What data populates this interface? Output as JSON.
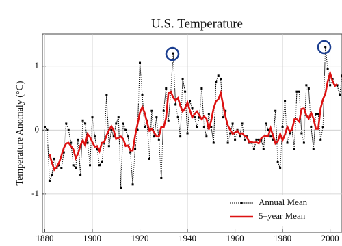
{
  "chart_data": {
    "type": "line",
    "title": "U.S. Temperature",
    "y_label": "Temperature Anomaly (°C)",
    "x": [
      1880,
      1881,
      1882,
      1883,
      1884,
      1885,
      1886,
      1887,
      1888,
      1889,
      1890,
      1891,
      1892,
      1893,
      1894,
      1895,
      1896,
      1897,
      1898,
      1899,
      1900,
      1901,
      1902,
      1903,
      1904,
      1905,
      1906,
      1907,
      1908,
      1909,
      1910,
      1911,
      1912,
      1913,
      1914,
      1915,
      1916,
      1917,
      1918,
      1919,
      1920,
      1921,
      1922,
      1923,
      1924,
      1925,
      1926,
      1927,
      1928,
      1929,
      1930,
      1931,
      1932,
      1933,
      1934,
      1935,
      1936,
      1937,
      1938,
      1939,
      1940,
      1941,
      1942,
      1943,
      1944,
      1945,
      1946,
      1947,
      1948,
      1949,
      1950,
      1951,
      1952,
      1953,
      1954,
      1955,
      1956,
      1957,
      1958,
      1959,
      1960,
      1961,
      1962,
      1963,
      1964,
      1965,
      1966,
      1967,
      1968,
      1969,
      1970,
      1971,
      1972,
      1973,
      1974,
      1975,
      1976,
      1977,
      1978,
      1979,
      1980,
      1981,
      1982,
      1983,
      1984,
      1985,
      1986,
      1987,
      1988,
      1989,
      1990,
      1991,
      1992,
      1993,
      1994,
      1995,
      1996,
      1997,
      1998,
      1999,
      2000,
      2001,
      2002,
      2003,
      2004,
      2005
    ],
    "series": [
      {
        "name": "Annual Mean",
        "color": "#000000",
        "style": "dotted",
        "marker": "square",
        "values": [
          0.05,
          0,
          -0.8,
          -0.7,
          -0.45,
          -0.6,
          -0.55,
          -0.6,
          -0.35,
          0.1,
          0,
          -0.2,
          -0.55,
          -0.6,
          -0.15,
          -0.7,
          0.15,
          0.1,
          -0.2,
          -0.55,
          0.2,
          -0.1,
          -0.3,
          -0.55,
          -0.5,
          -0.2,
          0.55,
          -0.25,
          0,
          -0.1,
          0.1,
          0.2,
          -0.9,
          0.1,
          0,
          -0.1,
          -0.35,
          -0.85,
          -0.3,
          0,
          1.05,
          0.55,
          0.05,
          0.15,
          -0.45,
          0.3,
          -0.1,
          0.2,
          -0.15,
          -0.75,
          0.3,
          0.65,
          0.15,
          0.6,
          1.2,
          0.4,
          0.2,
          -0.1,
          0.8,
          0.6,
          -0.05,
          0.45,
          0.35,
          0.2,
          0.05,
          0.2,
          0.65,
          0.05,
          -0.1,
          0.25,
          0.05,
          -0.2,
          0.75,
          0.85,
          0.8,
          0.2,
          0.3,
          -0.2,
          -0.05,
          0.1,
          -0.15,
          0,
          -0.1,
          0.1,
          -0.15,
          -0.1,
          -0.2,
          -0.2,
          -0.3,
          -0.15,
          -0.15,
          -0.15,
          -0.3,
          0.1,
          0,
          -0.1,
          -0.15,
          0.3,
          -0.5,
          -0.6,
          0.05,
          0.45,
          -0.2,
          -0.05,
          0,
          -0.3,
          0.6,
          0.6,
          -0.05,
          -0.2,
          0.7,
          0.65,
          0.05,
          -0.3,
          0.25,
          0.25,
          -0.15,
          0.05,
          1.3,
          0.95,
          0.7,
          0.8,
          0.7,
          0.7,
          0.55,
          0.85
        ]
      },
      {
        "name": "5–year Mean",
        "color": "#dd1111",
        "style": "solid",
        "values": [
          null,
          null,
          -0.38,
          -0.51,
          -0.62,
          -0.58,
          -0.51,
          -0.4,
          -0.28,
          -0.21,
          -0.2,
          -0.25,
          -0.3,
          -0.44,
          -0.37,
          -0.24,
          -0.16,
          -0.24,
          -0.06,
          -0.11,
          -0.19,
          -0.26,
          -0.25,
          -0.33,
          -0.2,
          -0.19,
          -0.08,
          0,
          0.06,
          -0.01,
          -0.14,
          -0.12,
          -0.1,
          -0.14,
          -0.25,
          -0.24,
          -0.32,
          -0.32,
          -0.09,
          0.09,
          0.27,
          0.36,
          0.27,
          0.12,
          -0.01,
          0.02,
          -0.04,
          -0.1,
          -0.1,
          0.05,
          0.04,
          0.19,
          0.58,
          0.6,
          0.51,
          0.46,
          0.5,
          0.38,
          0.29,
          0.34,
          0.43,
          0.31,
          0.2,
          0.25,
          0.29,
          0.23,
          0.17,
          0.21,
          0.18,
          0.01,
          0.15,
          0.34,
          0.45,
          0.48,
          0.58,
          0.39,
          0.21,
          0.07,
          0,
          -0.06,
          -0.04,
          -0.01,
          -0.06,
          -0.05,
          -0.09,
          -0.11,
          -0.19,
          -0.19,
          -0.2,
          -0.19,
          -0.21,
          -0.13,
          -0.1,
          -0.09,
          -0.09,
          0.03,
          -0.09,
          -0.21,
          -0.18,
          -0.06,
          -0.16,
          -0.07,
          0.05,
          -0.02,
          0.01,
          0.17,
          0.17,
          0.13,
          0.33,
          0.34,
          0.23,
          0.18,
          0.27,
          0.18,
          0.02,
          0.02,
          0.34,
          0.48,
          0.57,
          0.76,
          0.89,
          0.77,
          0.69,
          0.72,
          null,
          null
        ]
      }
    ],
    "xlim": [
      1879,
      2005
    ],
    "xticks": [
      1880,
      1900,
      1920,
      1940,
      1960,
      1980,
      2000
    ],
    "ylim": [
      -1.6,
      1.5
    ],
    "yticks": [
      -1,
      0,
      1
    ],
    "grid": true,
    "legend": "lower right"
  }
}
